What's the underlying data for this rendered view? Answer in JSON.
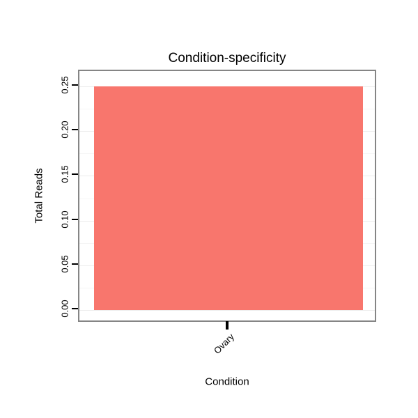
{
  "chart_data": {
    "type": "bar",
    "title": "Condition-specificity",
    "xlabel": "Condition",
    "ylabel": "Total Reads",
    "categories": [
      "Ovary"
    ],
    "values": [
      0.25
    ],
    "ylim": [
      0,
      0.25
    ],
    "ytick_values": [
      0,
      0.05,
      0.1,
      0.15,
      0.2,
      0.25
    ],
    "ytick_labels": [
      "0.00",
      "0.05",
      "0.10",
      "0.15",
      "0.20",
      "0.25"
    ],
    "grid": "horizontal-faint",
    "legend_position": "none",
    "colors": {
      "bar_fill": "#F8766D",
      "panel_border": "#858585",
      "major_gridline": "#ECECEC",
      "minor_gridline": "#F5F5F5",
      "tick": "#000000",
      "text": "#000000",
      "background": "#FFFFFF"
    }
  }
}
